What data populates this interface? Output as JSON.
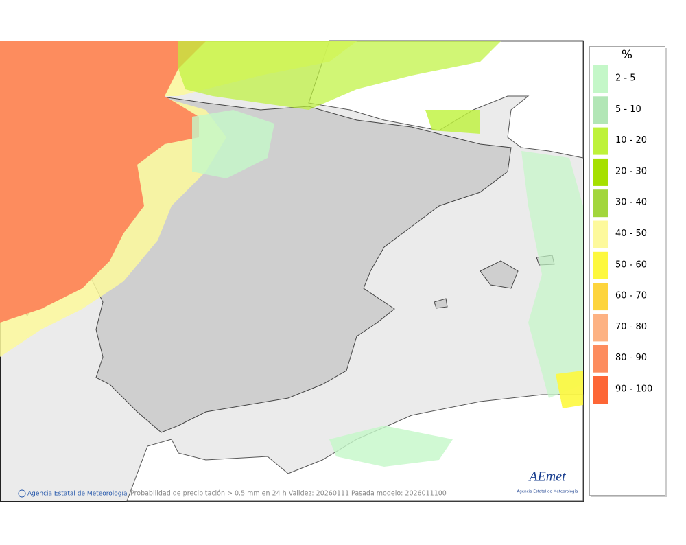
{
  "legend": {
    "title": "%",
    "items": [
      {
        "label": "2 - 5",
        "color": "#c4f7c8"
      },
      {
        "label": "5 - 10",
        "color": "#b2e6b6"
      },
      {
        "label": "10 - 20",
        "color": "#bef23a"
      },
      {
        "label": "20 - 30",
        "color": "#a6e000"
      },
      {
        "label": "30 - 40",
        "color": "#a2d63c"
      },
      {
        "label": "40 - 50",
        "color": "#fdf99c"
      },
      {
        "label": "50 - 60",
        "color": "#fdf83e"
      },
      {
        "label": "60 - 70",
        "color": "#fdd43d"
      },
      {
        "label": "70 - 80",
        "color": "#fdb283"
      },
      {
        "label": "80 - 90",
        "color": "#fd8c5e"
      },
      {
        "label": "90 - 100",
        "color": "#fd6636"
      }
    ]
  },
  "map": {
    "credit": "Agencia Estatal de Meteorología",
    "caption": "Probabilidad de precipitación > 0.5 mm en 24 h Validez: 20260111 Pasada modelo: 2026011100",
    "logo": {
      "name": "AEmet",
      "subtitle": "Agencia Estatal de Meteorología"
    }
  }
}
